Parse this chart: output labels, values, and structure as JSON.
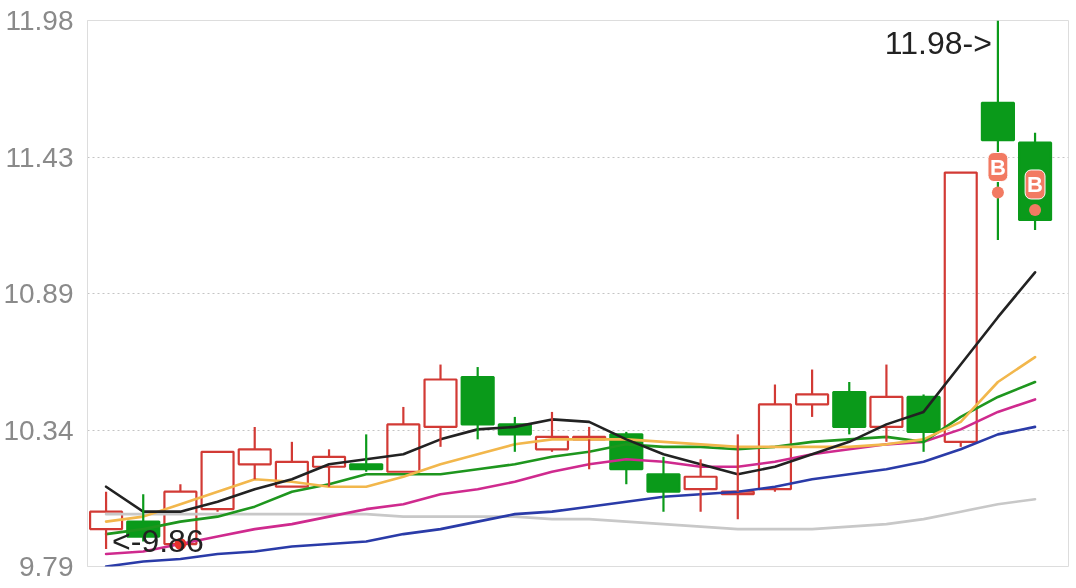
{
  "chart_data": {
    "type": "candlestick",
    "categories": [
      null,
      null,
      null,
      null,
      null,
      null,
      null,
      null,
      null,
      null,
      null,
      null,
      null,
      null,
      null,
      null,
      null,
      null,
      null,
      null,
      null,
      null,
      null,
      null,
      null,
      null
    ],
    "ohlc": [
      [
        9.94,
        10.09,
        9.86,
        10.01
      ],
      [
        9.97,
        10.08,
        9.89,
        9.91
      ],
      [
        9.88,
        10.12,
        9.88,
        10.09
      ],
      [
        10.02,
        10.25,
        10.01,
        10.25
      ],
      [
        10.2,
        10.35,
        10.14,
        10.26
      ],
      [
        10.11,
        10.29,
        10.11,
        10.21
      ],
      [
        10.19,
        10.26,
        10.11,
        10.23
      ],
      [
        10.2,
        10.32,
        10.17,
        10.18
      ],
      [
        10.17,
        10.43,
        10.17,
        10.36
      ],
      [
        10.35,
        10.6,
        10.27,
        10.54
      ],
      [
        10.55,
        10.59,
        10.3,
        10.36
      ],
      [
        10.36,
        10.39,
        10.25,
        10.32
      ],
      [
        10.26,
        10.41,
        10.25,
        10.31
      ],
      [
        10.3,
        10.35,
        10.18,
        10.31
      ],
      [
        10.32,
        10.33,
        10.12,
        10.18
      ],
      [
        10.16,
        10.23,
        10.01,
        10.09
      ],
      [
        10.1,
        10.22,
        10.01,
        10.15
      ],
      [
        10.08,
        10.32,
        9.98,
        10.09
      ],
      [
        10.1,
        10.52,
        10.09,
        10.44
      ],
      [
        10.44,
        10.58,
        10.39,
        10.48
      ],
      [
        10.49,
        10.53,
        10.32,
        10.35
      ],
      [
        10.35,
        10.6,
        10.29,
        10.47
      ],
      [
        10.47,
        10.48,
        10.25,
        10.33
      ],
      [
        10.29,
        11.37,
        10.27,
        11.37
      ],
      [
        11.65,
        11.98,
        11.1,
        11.5
      ],
      [
        11.49,
        11.53,
        11.14,
        11.18
      ]
    ],
    "colors": [
      "#d23a35",
      "#0a9a1a",
      "#d23a35",
      "#d23a35",
      "#d23a35",
      "#d23a35",
      "#d23a35",
      "#0a9a1a",
      "#d23a35",
      "#d23a35",
      "#0a9a1a",
      "#0a9a1a",
      "#d23a35",
      "#d23a35",
      "#0a9a1a",
      "#0a9a1a",
      "#d23a35",
      "#d23a35",
      "#d23a35",
      "#d23a35",
      "#0a9a1a",
      "#d23a35",
      "#0a9a1a",
      "#d23a35",
      "#0a9a1a",
      "#0a9a1a"
    ],
    "series": [
      {
        "type": "line",
        "color": "#c8c8c8",
        "values": [
          10.0,
          10.0,
          10.0,
          10.0,
          10.0,
          10.0,
          10.0,
          10.0,
          9.99,
          9.99,
          9.99,
          9.99,
          9.98,
          9.98,
          9.97,
          9.96,
          9.95,
          9.94,
          9.94,
          9.94,
          9.95,
          9.96,
          9.98,
          10.01,
          10.04,
          10.06
        ]
      },
      {
        "type": "line",
        "color": "#2a3ba8",
        "values": [
          9.79,
          9.81,
          9.82,
          9.84,
          9.85,
          9.87,
          9.88,
          9.89,
          9.92,
          9.94,
          9.97,
          10.0,
          10.01,
          10.03,
          10.05,
          10.07,
          10.08,
          10.09,
          10.11,
          10.14,
          10.16,
          10.18,
          10.21,
          10.26,
          10.32,
          10.35
        ]
      },
      {
        "type": "line",
        "color": "#cf2a8e",
        "values": [
          9.84,
          9.85,
          9.88,
          9.91,
          9.94,
          9.96,
          9.99,
          10.02,
          10.04,
          10.08,
          10.1,
          10.13,
          10.17,
          10.2,
          10.22,
          10.21,
          10.19,
          10.19,
          10.21,
          10.24,
          10.26,
          10.28,
          10.29,
          10.34,
          10.41,
          10.46
        ]
      },
      {
        "type": "line",
        "color": "#1e961e",
        "values": [
          9.92,
          9.94,
          9.97,
          9.99,
          10.03,
          10.09,
          10.12,
          10.16,
          10.16,
          10.16,
          10.18,
          10.2,
          10.23,
          10.25,
          10.28,
          10.27,
          10.27,
          10.26,
          10.27,
          10.29,
          10.3,
          10.31,
          10.29,
          10.39,
          10.47,
          10.53
        ]
      },
      {
        "type": "line",
        "color": "#f2b74c",
        "values": [
          9.97,
          9.99,
          10.04,
          10.09,
          10.14,
          10.13,
          10.11,
          10.11,
          10.15,
          10.2,
          10.24,
          10.28,
          10.3,
          10.3,
          10.3,
          10.29,
          10.28,
          10.27,
          10.27,
          10.27,
          10.27,
          10.28,
          10.3,
          10.37,
          10.53,
          10.63
        ]
      },
      {
        "type": "line",
        "color": "#222222",
        "values": [
          10.11,
          10.01,
          10.01,
          10.05,
          10.1,
          10.14,
          10.2,
          10.22,
          10.24,
          10.3,
          10.34,
          10.35,
          10.38,
          10.37,
          10.3,
          10.24,
          10.2,
          10.16,
          10.19,
          10.24,
          10.29,
          10.36,
          10.41,
          10.6,
          10.79,
          10.97
        ]
      },
      {
        "type": "scatter",
        "marker": "circle",
        "values": [
          null,
          null,
          9.88,
          null,
          null,
          null,
          null,
          null,
          null,
          null,
          null,
          null,
          null,
          null,
          null,
          null,
          null,
          null,
          null,
          null,
          null,
          null,
          null,
          null,
          11.29,
          11.22
        ],
        "colors": [
          null,
          null,
          "#e8332c",
          null,
          null,
          null,
          null,
          null,
          null,
          null,
          null,
          null,
          null,
          null,
          null,
          null,
          null,
          null,
          null,
          null,
          null,
          null,
          null,
          null,
          "#f27a62",
          "#f27a62"
        ],
        "value_labels": [
          null,
          null,
          null,
          null,
          null,
          null,
          null,
          null,
          null,
          null,
          null,
          null,
          null,
          null,
          null,
          null,
          null,
          null,
          null,
          null,
          null,
          null,
          null,
          null,
          "B",
          "B"
        ]
      }
    ],
    "annotations": [
      "11.98->",
      {
        "text": "<-9.86",
        "y": 9.86
      }
    ],
    "ylim": [
      9.79,
      11.98
    ],
    "yticks": [
      9.79,
      {
        "value": 10.3375,
        "label": "10.34"
      },
      {
        "value": 10.885,
        "label": "10.89"
      },
      {
        "value": 11.4325,
        "label": "11.43"
      },
      11.98
    ],
    "grid": "y",
    "tick_labels": "y"
  }
}
